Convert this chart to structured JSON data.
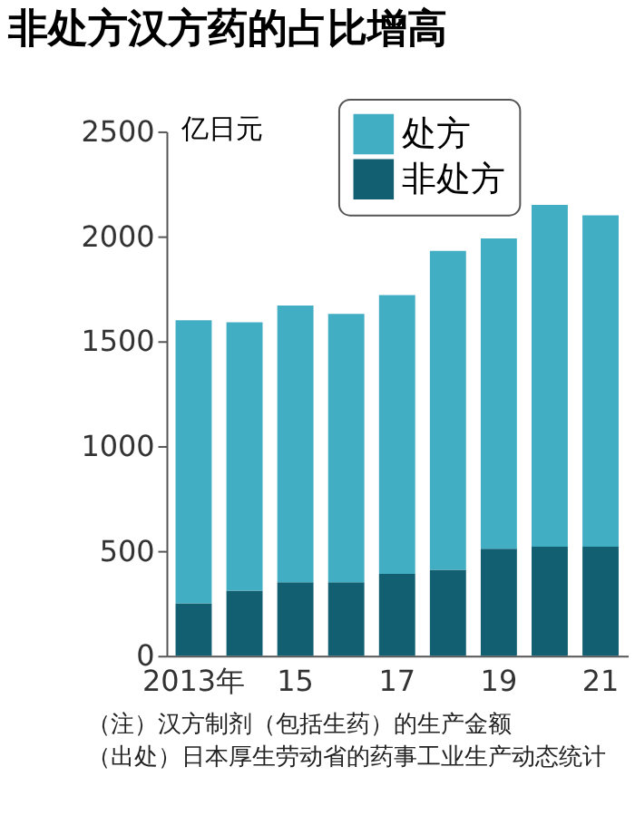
{
  "chart_data": {
    "type": "bar",
    "title": "非处方汉方药的占比增高",
    "ylabel": "亿日元",
    "categories": [
      "2013年",
      null,
      "15",
      null,
      "17",
      null,
      "19",
      null,
      "21"
    ],
    "stacked": true,
    "series": [
      {
        "name": "非处方",
        "color": "#125f72",
        "values": [
          250,
          310,
          350,
          350,
          390,
          410,
          510,
          520,
          520
        ]
      },
      {
        "name": "处方",
        "color": "#41aec3",
        "values": [
          1350,
          1280,
          1320,
          1280,
          1330,
          1520,
          1480,
          1630,
          1580
        ]
      }
    ],
    "ylim": [
      0,
      2500
    ],
    "yticks": [
      0,
      500,
      1000,
      1500,
      2000,
      2500
    ],
    "grid": false,
    "legend": "top",
    "annotations": [
      "（注）汉方制剂（包括生药）的生产金额",
      "（出处）日本厚生劳动省的药事工业生产动态统计"
    ]
  }
}
